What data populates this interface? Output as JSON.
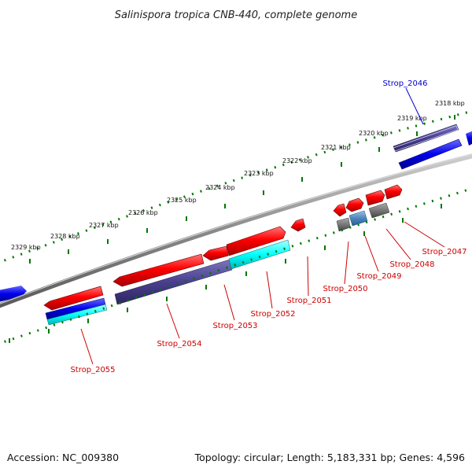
{
  "title": "Salinispora tropica CNB-440, complete genome",
  "footer": {
    "accession": "Accession: NC_009380",
    "summary": "Topology: circular; Length: 5,183,331 bp; Genes: 4,596"
  },
  "ticks": [
    "2318 kbp",
    "2319 kbp",
    "2320 kbp",
    "2321 kbp",
    "2322 kbp",
    "2323 kbp",
    "2324 kbp",
    "2325 kbp",
    "2326 kbp",
    "2327 kbp",
    "2328 kbp",
    "2329 kbp"
  ],
  "genes": [
    {
      "name": "Strop_2046",
      "color": "#0000cc"
    },
    {
      "name": "Strop_2047",
      "color": "#cc0000"
    },
    {
      "name": "Strop_2048",
      "color": "#cc0000"
    },
    {
      "name": "Strop_2049",
      "color": "#cc0000"
    },
    {
      "name": "Strop_2050",
      "color": "#cc0000"
    },
    {
      "name": "Strop_2051",
      "color": "#cc0000"
    },
    {
      "name": "Strop_2052",
      "color": "#cc0000"
    },
    {
      "name": "Strop_2053",
      "color": "#cc0000"
    },
    {
      "name": "Strop_2054",
      "color": "#cc0000"
    },
    {
      "name": "Strop_2055",
      "color": "#cc0000"
    }
  ],
  "colors": {
    "cds_red": "#ff0000",
    "gene_blue": "#0000ee",
    "cyan": "#00ffff",
    "slate": "#4a3f8f",
    "grey": "#777777",
    "tick_green": "#007700"
  }
}
